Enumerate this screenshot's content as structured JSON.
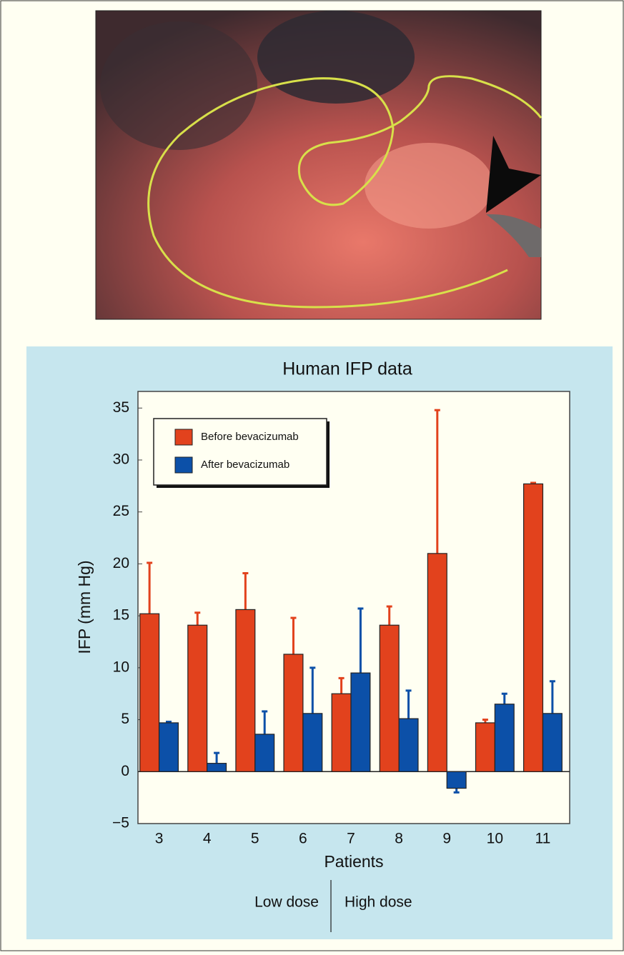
{
  "chart_data": {
    "type": "bar",
    "title": "Human IFP data",
    "x_label": "Patients",
    "y_label": "IFP (mm Hg)",
    "categories": [
      "3",
      "4",
      "5",
      "6",
      "7",
      "8",
      "9",
      "10",
      "11"
    ],
    "series": [
      {
        "name": "Before bevacizumab",
        "color": "#e2421d",
        "values": [
          15.2,
          14.1,
          15.6,
          11.3,
          7.5,
          14.1,
          21.0,
          4.7,
          27.7
        ],
        "errors": [
          4.9,
          1.2,
          3.5,
          3.5,
          1.5,
          1.8,
          13.8,
          0.3,
          0.1
        ]
      },
      {
        "name": "After bevacizumab",
        "color": "#0c50a8",
        "values": [
          4.7,
          0.8,
          3.6,
          5.6,
          9.5,
          5.1,
          -1.6,
          6.5,
          5.6
        ],
        "errors": [
          0.1,
          1.0,
          2.2,
          4.4,
          6.2,
          2.7,
          0.4,
          1.0,
          3.1
        ]
      }
    ],
    "ylim": [
      -5,
      36.6
    ],
    "yticks": [
      {
        "value": -5,
        "label": "−5"
      },
      0,
      5,
      10,
      15,
      20,
      25,
      30,
      35
    ],
    "group_labels": [
      "Low dose",
      "High dose"
    ],
    "legend": "upper-left"
  }
}
